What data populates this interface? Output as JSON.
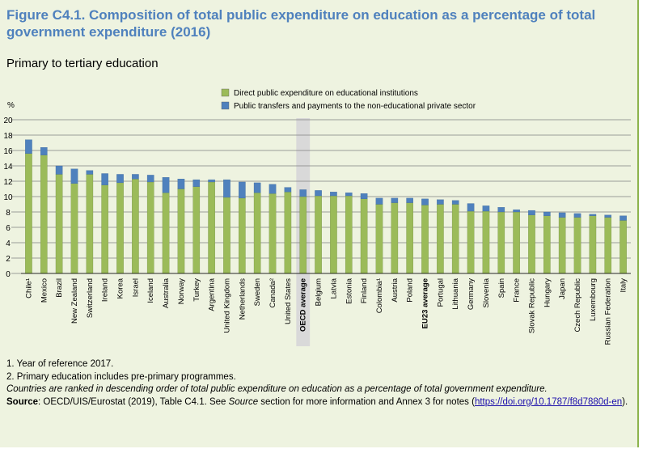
{
  "figure": {
    "title": "Figure C4.1. Composition of total public expenditure on education as a percentage of total government expenditure (2016)",
    "subtitle": "Primary to tertiary education"
  },
  "colors": {
    "direct": "#9bbb59",
    "transfers": "#4f81bd",
    "average_band": "#d9d9d9",
    "title": "#4f81bd",
    "background": "#eef3e0"
  },
  "chart_data": {
    "type": "bar",
    "stacked": true,
    "ylabel": "%",
    "ylim": [
      0,
      20
    ],
    "yticks": [
      0,
      2,
      4,
      6,
      8,
      10,
      12,
      14,
      16,
      18,
      20
    ],
    "grid": true,
    "legend_position": "top",
    "categories": [
      "Chile¹",
      "Mexico",
      "Brazil",
      "New Zealand",
      "Switzerland",
      "Ireland",
      "Korea",
      "Israel",
      "Iceland",
      "Australia",
      "Norway",
      "Turkey",
      "Argentina",
      "United Kingdom",
      "Netherlands",
      "Sweden",
      "Canada²",
      "United States",
      "OECD average",
      "Belgium",
      "Latvia",
      "Estonia",
      "Finland",
      "Colombia¹",
      "Austria",
      "Poland",
      "EU23 average",
      "Portugal",
      "Lithuania",
      "Germany",
      "Slovenia",
      "Spain",
      "France",
      "Slovak Republic",
      "Hungary",
      "Japan",
      "Czech Republic",
      "Luxembourg",
      "Russian Federation",
      "Italy"
    ],
    "highlighted_category": "OECD average",
    "bold_categories": [
      "OECD average",
      "EU23 average"
    ],
    "series": [
      {
        "name": "Direct public expenditure on educational institutions",
        "values": [
          15.6,
          15.4,
          12.9,
          11.7,
          12.9,
          11.5,
          11.8,
          12.3,
          11.9,
          10.5,
          11.0,
          11.3,
          11.9,
          9.9,
          9.8,
          10.5,
          10.4,
          10.6,
          10.0,
          10.1,
          10.1,
          10.1,
          9.7,
          9.0,
          9.2,
          9.2,
          8.9,
          9.0,
          9.0,
          8.1,
          8.1,
          8.0,
          8.0,
          7.6,
          7.5,
          7.3,
          7.3,
          7.5,
          7.3,
          6.9
        ]
      },
      {
        "name": "Public transfers and payments to the non-educational private sector",
        "values": [
          1.8,
          1.0,
          1.1,
          1.9,
          0.5,
          1.5,
          1.1,
          0.6,
          0.9,
          2.0,
          1.3,
          0.9,
          0.3,
          2.3,
          2.1,
          1.3,
          1.2,
          0.6,
          0.9,
          0.7,
          0.5,
          0.4,
          0.7,
          0.8,
          0.6,
          0.6,
          0.8,
          0.6,
          0.5,
          1.0,
          0.7,
          0.6,
          0.3,
          0.6,
          0.5,
          0.6,
          0.5,
          0.2,
          0.3,
          0.6
        ]
      }
    ]
  },
  "notes": {
    "note1": "1. Year of reference 2017.",
    "note2": "2. Primary education includes pre-primary programmes.",
    "ranking": "Countries are ranked in descending order of total public expenditure on education as a percentage of total government expenditure.",
    "source_label": "Source",
    "source_text": ": OECD/UIS/Eurostat (2019), Table C4.1. See ",
    "source_italic": "Source",
    "source_text2": " section for more information and Annex 3 for notes (",
    "source_link": "https://doi.org/10.1787/f8d7880d-en",
    "source_end": ")."
  }
}
